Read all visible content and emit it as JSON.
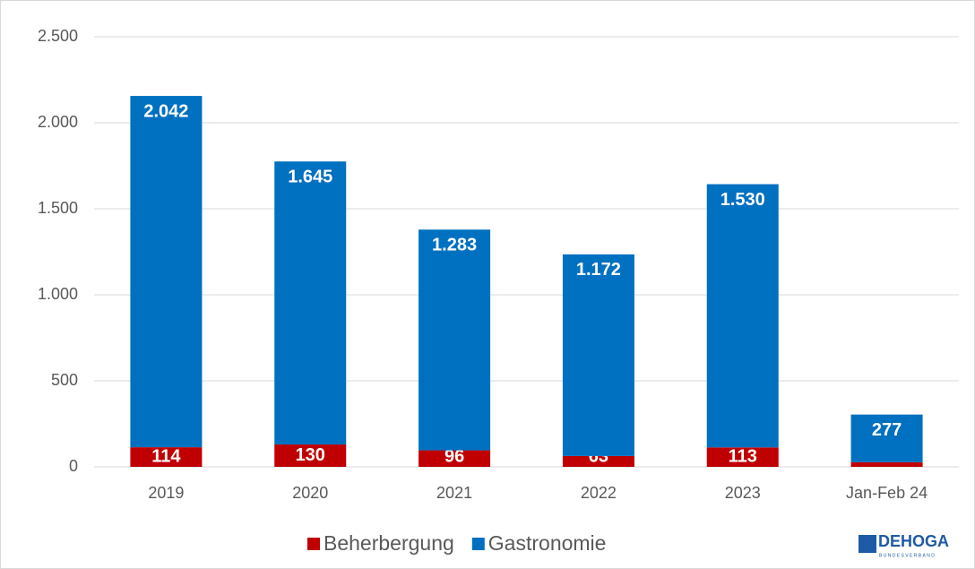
{
  "chart_data": {
    "type": "stacked_bar",
    "categories": [
      "2019",
      "2020",
      "2021",
      "2022",
      "2023",
      "Jan-Feb 24"
    ],
    "series": [
      {
        "name": "Beherbergung",
        "color": "#c00000",
        "values": [
          114,
          130,
          96,
          63,
          113,
          27
        ]
      },
      {
        "name": "Gastronomie",
        "color": "#0070c0",
        "values": [
          2042,
          1645,
          1283,
          1172,
          1530,
          277
        ],
        "value_labels": [
          "2.042",
          "1.645",
          "1.283",
          "1.172",
          "1.530",
          "277"
        ]
      }
    ],
    "ylim": [
      0,
      2500
    ],
    "yticks": [
      0,
      500,
      {
        "value": 1000,
        "label": "1.000"
      },
      {
        "value": 1500,
        "label": "1.500"
      },
      {
        "value": 2000,
        "label": "2.000"
      },
      {
        "value": 2500,
        "label": "2.500"
      }
    ],
    "grid": true,
    "legend": "bottom"
  },
  "logo": {
    "text": "DEHOGA",
    "subtext": "BUNDESVERBAND"
  }
}
